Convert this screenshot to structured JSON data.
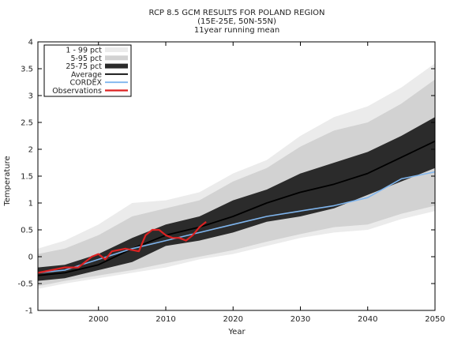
{
  "chart_data": {
    "type": "area",
    "title": [
      "RCP 8.5 GCM RESULTS FOR POLAND REGION",
      "(15E-25E, 50N-55N)",
      "11year running mean"
    ],
    "xlabel": "Year",
    "ylabel": "Temperature",
    "xlim": [
      1991,
      2050
    ],
    "ylim": [
      -1,
      4
    ],
    "xticks": [
      2000,
      2010,
      2020,
      2030,
      2040,
      2050
    ],
    "yticks": [
      -1,
      -0.5,
      0,
      0.5,
      1,
      1.5,
      2,
      2.5,
      3,
      3.5,
      4
    ],
    "grid": false,
    "legend_position": "top-left",
    "years": [
      1991,
      1995,
      2000,
      2005,
      2010,
      2015,
      2020,
      2025,
      2030,
      2035,
      2040,
      2045,
      2050
    ],
    "bands": [
      {
        "name": "1 - 99 pct",
        "color": "#ebebeb",
        "lower": [
          -0.6,
          -0.5,
          -0.4,
          -0.3,
          -0.2,
          -0.05,
          0.05,
          0.2,
          0.35,
          0.45,
          0.5,
          0.7,
          0.85
        ],
        "upper": [
          0.15,
          0.3,
          0.6,
          1.0,
          1.05,
          1.2,
          1.55,
          1.8,
          2.25,
          2.6,
          2.8,
          3.15,
          3.6
        ]
      },
      {
        "name": "5-95 pct",
        "color": "#d2d2d2",
        "lower": [
          -0.55,
          -0.45,
          -0.35,
          -0.25,
          -0.12,
          0.0,
          0.12,
          0.28,
          0.42,
          0.55,
          0.6,
          0.8,
          0.95
        ],
        "upper": [
          0.05,
          0.15,
          0.4,
          0.75,
          0.9,
          1.05,
          1.4,
          1.65,
          2.05,
          2.35,
          2.5,
          2.85,
          3.3
        ]
      },
      {
        "name": "25-75 pct",
        "color": "#2b2b2b",
        "lower": [
          -0.45,
          -0.4,
          -0.25,
          -0.1,
          0.2,
          0.3,
          0.45,
          0.65,
          0.75,
          0.9,
          1.15,
          1.4,
          1.65
        ],
        "upper": [
          -0.2,
          -0.15,
          0.05,
          0.35,
          0.6,
          0.75,
          1.05,
          1.25,
          1.55,
          1.75,
          1.95,
          2.25,
          2.6
        ]
      }
    ],
    "series": [
      {
        "name": "Average",
        "color": "#000000",
        "x": [
          1991,
          1995,
          2000,
          2005,
          2010,
          2015,
          2020,
          2025,
          2030,
          2035,
          2040,
          2045,
          2050
        ],
        "y": [
          -0.35,
          -0.3,
          -0.15,
          0.15,
          0.4,
          0.55,
          0.75,
          1.0,
          1.2,
          1.35,
          1.55,
          1.85,
          2.15
        ]
      },
      {
        "name": "CORDEX",
        "color": "#7fb5ee",
        "x": [
          1991,
          1995,
          2000,
          2005,
          2010,
          2015,
          2020,
          2025,
          2030,
          2035,
          2040,
          2045,
          2050
        ],
        "y": [
          -0.3,
          -0.25,
          -0.05,
          0.15,
          0.3,
          0.45,
          0.6,
          0.75,
          0.85,
          0.95,
          1.1,
          1.45,
          1.58
        ]
      },
      {
        "name": "Observations",
        "color": "#dd2222",
        "x": [
          1991,
          1993,
          1995,
          1997,
          1999,
          2000,
          2001,
          2002,
          2004,
          2006,
          2007,
          2008,
          2009,
          2010,
          2011,
          2012,
          2013,
          2014,
          2015,
          2016
        ],
        "y": [
          -0.3,
          -0.25,
          -0.2,
          -0.2,
          0.0,
          0.05,
          -0.05,
          0.1,
          0.15,
          0.1,
          0.4,
          0.5,
          0.5,
          0.4,
          0.35,
          0.35,
          0.3,
          0.4,
          0.55,
          0.65
        ]
      }
    ],
    "legend_entries": [
      "1 - 99 pct",
      "5-95 pct",
      "25-75 pct",
      "Average",
      "CORDEX",
      "Observations"
    ]
  }
}
